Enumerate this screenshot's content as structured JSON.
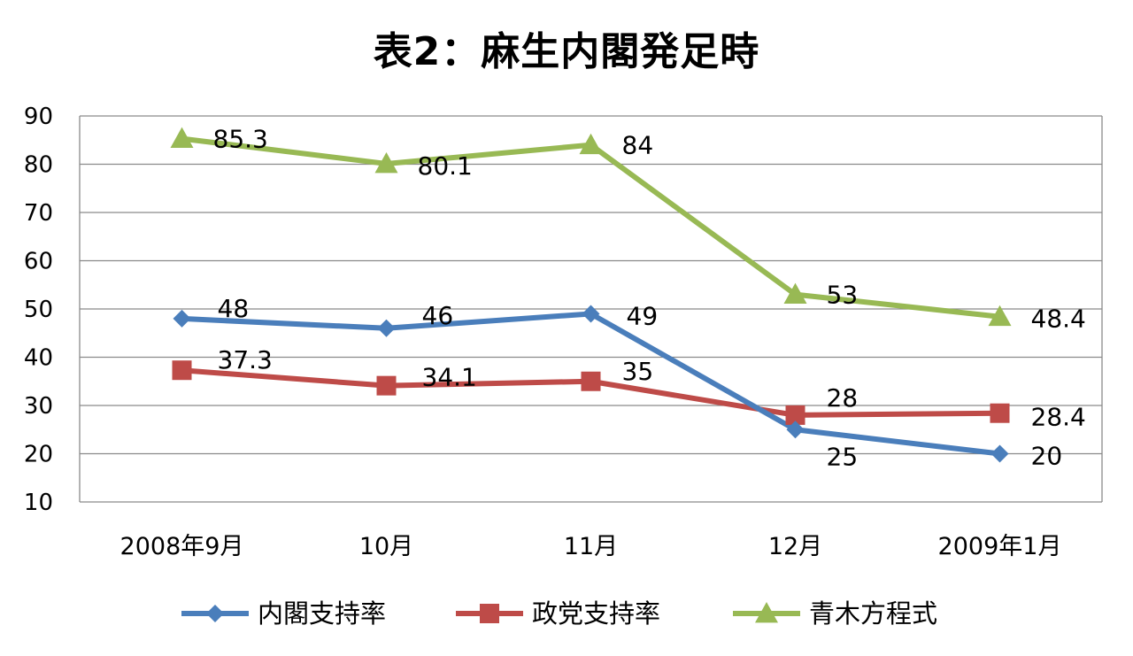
{
  "chart_data": {
    "type": "line",
    "title": "表2：麻生内閣発足時",
    "categories": [
      "2008年9月",
      "10月",
      "11月",
      "12月",
      "2009年1月"
    ],
    "ylim": [
      10,
      90
    ],
    "yticks": [
      10,
      20,
      30,
      40,
      50,
      60,
      70,
      80,
      90
    ],
    "grid": true,
    "legend_position": "bottom",
    "series": [
      {
        "name": "内閣支持率",
        "values": [
          48,
          46,
          49,
          25,
          20
        ],
        "color": "#4a7ebb",
        "marker": "diamond"
      },
      {
        "name": "政党支持率",
        "values": [
          37.3,
          34.1,
          35,
          28,
          28.4
        ],
        "color": "#be4b48",
        "marker": "square"
      },
      {
        "name": "青木方程式",
        "values": [
          85.3,
          80.1,
          84,
          53,
          48.4
        ],
        "color": "#98b954",
        "marker": "triangle"
      }
    ]
  }
}
